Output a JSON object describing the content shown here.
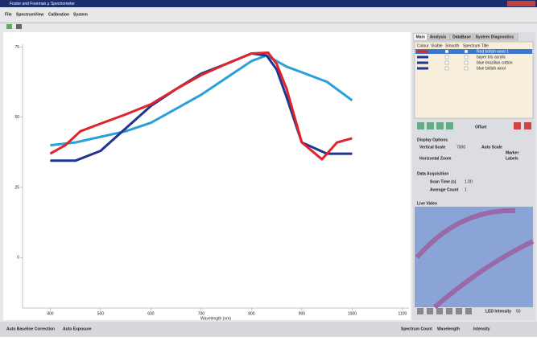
{
  "window": {
    "title": "Foster and Freeman μ Spectrometer",
    "menu": [
      "File",
      "Spectrum",
      "View",
      "Calibration",
      "System"
    ]
  },
  "chart_data": {
    "type": "line",
    "x_label": "Wavelength (nm)",
    "xlim": [
      345,
      1113
    ],
    "xticks": [
      400,
      500,
      600,
      700,
      800,
      900,
      1000,
      1100
    ],
    "ylim": [
      -18,
      76
    ],
    "yticks": [
      0,
      25,
      50,
      75
    ],
    "series": [
      {
        "color": "#2aa0d8",
        "x": [
          400,
          450,
          500,
          550,
          600,
          650,
          700,
          750,
          800,
          830,
          870,
          900,
          950,
          1000
        ],
        "values": [
          40,
          41,
          43,
          45,
          48,
          53,
          58,
          64,
          70,
          72,
          68,
          66,
          62.6,
          56
        ]
      },
      {
        "color": "#1f3590",
        "x": [
          400,
          450,
          500,
          550,
          600,
          650,
          700,
          750,
          800,
          830,
          850,
          870,
          900,
          950,
          1000
        ],
        "values": [
          34.5,
          34.5,
          38,
          46,
          54,
          60,
          65.5,
          69,
          72.7,
          72,
          67,
          57,
          41,
          37,
          37
        ]
      },
      {
        "color": "#e0242a",
        "x": [
          400,
          430,
          460,
          500,
          550,
          600,
          650,
          700,
          750,
          800,
          833,
          850,
          870,
          900,
          940,
          970,
          1000
        ],
        "values": [
          37,
          40,
          45,
          47.7,
          51,
          54.6,
          60,
          65,
          69,
          72.7,
          73,
          69,
          60,
          41,
          35,
          41,
          42.5
        ]
      }
    ]
  },
  "panel": {
    "tabs": [
      "Main",
      "Analysis",
      "DataBase",
      "System Diagnostics"
    ],
    "columns": [
      "Colour",
      "Visible",
      "Smooth",
      "Spectrum Title"
    ],
    "rows": [
      {
        "color": "#e0242a",
        "title": "Red british wool 1"
      },
      {
        "color": "#1f3590",
        "title": "bayer tris acrylic"
      },
      {
        "color": "#1f3590",
        "title": "blue brazilian cotton"
      },
      {
        "color": "#1f3590",
        "title": "blue british wool"
      }
    ],
    "offset": "Offset",
    "display_options": "Display Options",
    "vertical_scale": "Vertical Scale",
    "vertical_scale_value": "7000",
    "auto_scale": "Auto Scale",
    "marker": "Marker",
    "horizontal_zoom": "Horizontal Zoom",
    "labels": "Labels",
    "data_acquisition": "Data Acquisition",
    "scan_time": "Scan Time (s)",
    "scan_time_value": "1.00",
    "average_count": "Average Count",
    "average_count_value": "1",
    "live_video": "Live Video",
    "led_intensity": "LED Intensity",
    "led_value": "50"
  },
  "status": [
    "Auto Baseline Correction",
    "Auto Exposure",
    "Spectrum Count",
    "Wavelength",
    "Intensity"
  ]
}
